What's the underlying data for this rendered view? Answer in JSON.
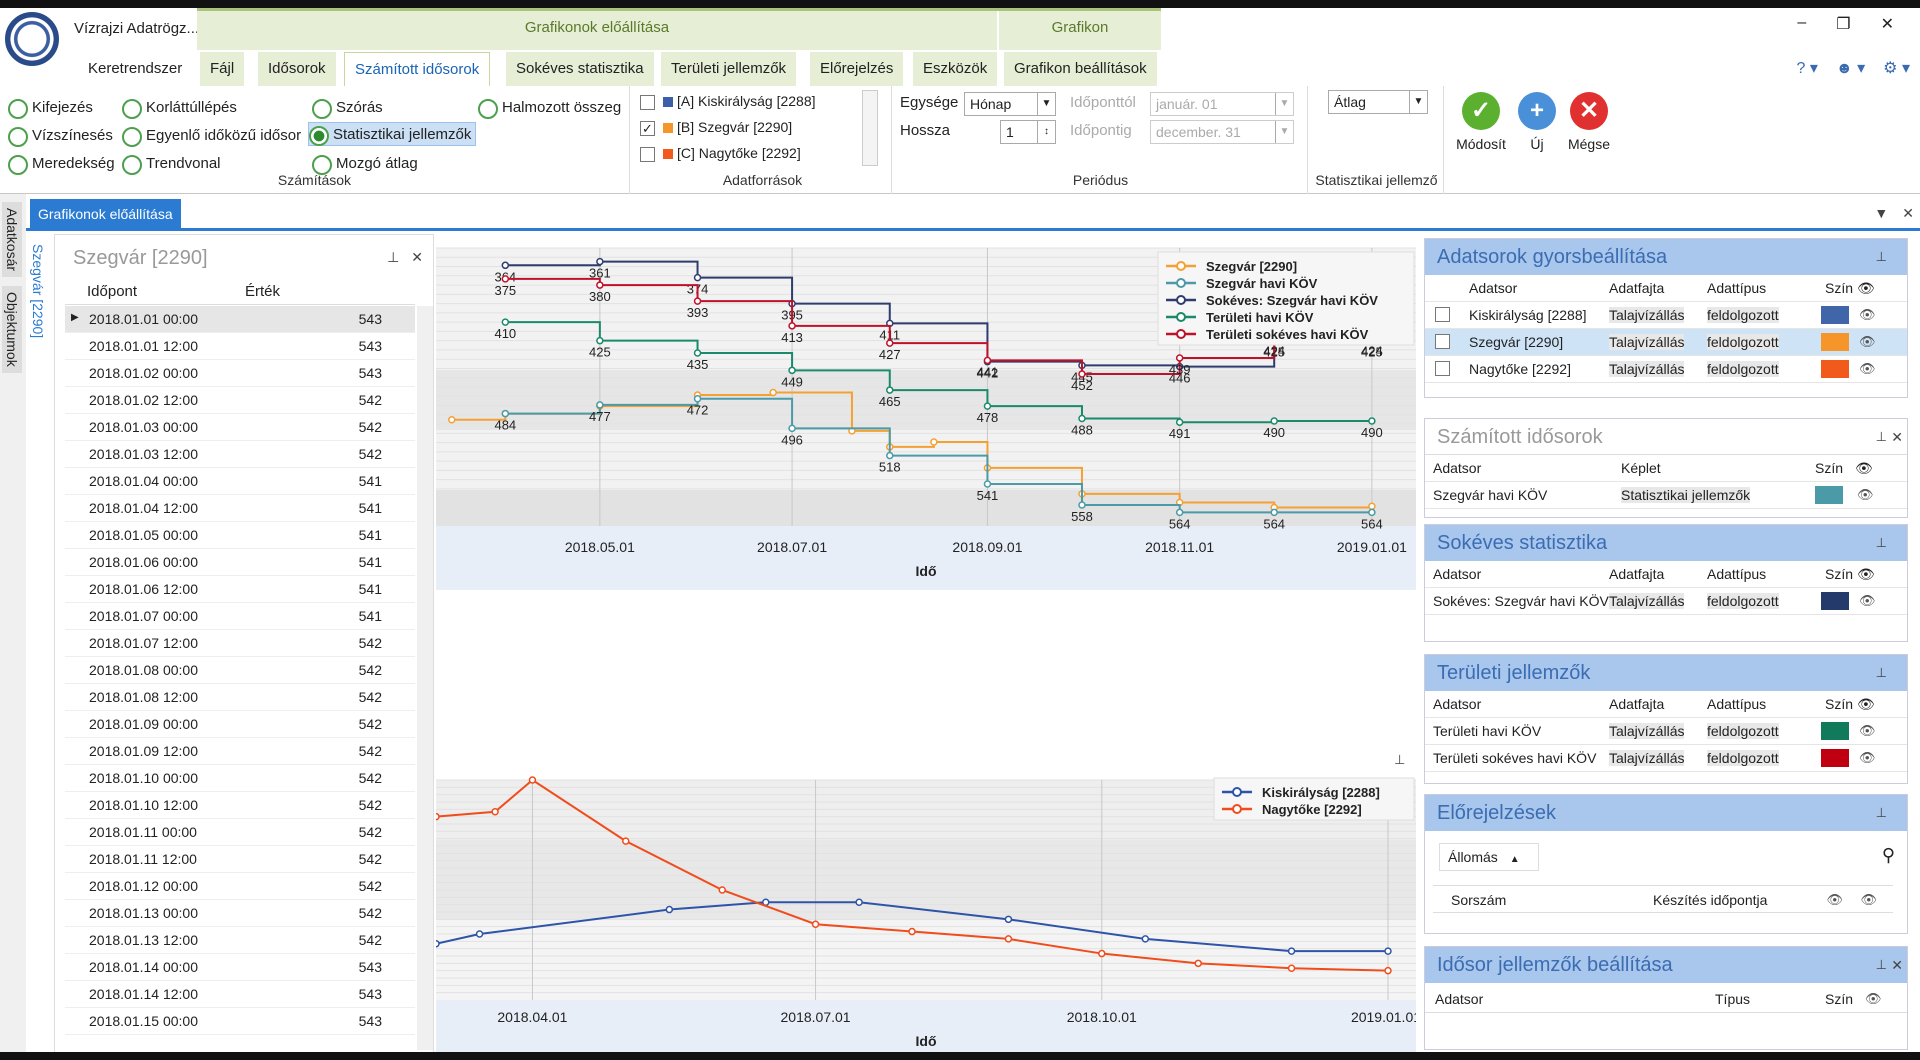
{
  "app": {
    "title": "Vízrajzi Adatrögz..."
  },
  "context_tabs": {
    "group1": "Grafikonok előállítása",
    "group2": "Grafikon"
  },
  "tabs": [
    "Keretrendszer",
    "Fájl",
    "Idősorok",
    "Számított idősorok",
    "Sokéves statisztika",
    "Területi jellemzők",
    "Előrejelzés",
    "Eszközök",
    "Grafikon beállítások"
  ],
  "calculations": {
    "label": "Számítások",
    "options": [
      "Kifejezés",
      "Korláttúllépés",
      "Szórás",
      "Halmozott összeg",
      "Vízszínesés",
      "Egyenlő időközű idősor",
      "Statisztikai jellemzők",
      "Meredekség",
      "Trendvonal",
      "Mozgó átlag"
    ],
    "selected": "Statisztikai jellemzők"
  },
  "sources": {
    "label": "Adatforrások",
    "items": [
      {
        "label": "[A] Kiskirályság [2288]",
        "checked": false,
        "color": "#3d5ea8"
      },
      {
        "label": "[B] Szegvár [2290]",
        "checked": true,
        "color": "#f5952a"
      },
      {
        "label": "[C] Nagytőke [2292]",
        "checked": false,
        "color": "#f25a1c"
      }
    ]
  },
  "period": {
    "label": "Periódus",
    "unit_label": "Egysége",
    "unit_value": "Hónap",
    "length_label": "Hossza",
    "length_value": "1",
    "from_label": "Időponttól",
    "from_value": "január. 01",
    "to_label": "Időpontig",
    "to_value": "december. 31"
  },
  "stat": {
    "label": "Statisztikai jellemző",
    "value": "Átlag"
  },
  "actions": {
    "modify": "Módosít",
    "new": "Új",
    "cancel": "Mégse"
  },
  "side_tabs": [
    "Adatkosár",
    "Objektumok"
  ],
  "doc_tab": "Grafikonok előállítása",
  "vertical_panel": "Szegvár [2290]",
  "grid": {
    "title": "Szegvár [2290]",
    "col_time": "Időpont",
    "col_value": "Érték",
    "rows": [
      [
        "2018.01.01 00:00",
        "543"
      ],
      [
        "2018.01.01 12:00",
        "543"
      ],
      [
        "2018.01.02 00:00",
        "543"
      ],
      [
        "2018.01.02 12:00",
        "542"
      ],
      [
        "2018.01.03 00:00",
        "542"
      ],
      [
        "2018.01.03 12:00",
        "542"
      ],
      [
        "2018.01.04 00:00",
        "541"
      ],
      [
        "2018.01.04 12:00",
        "541"
      ],
      [
        "2018.01.05 00:00",
        "541"
      ],
      [
        "2018.01.06 00:00",
        "541"
      ],
      [
        "2018.01.06 12:00",
        "541"
      ],
      [
        "2018.01.07 00:00",
        "541"
      ],
      [
        "2018.01.07 12:00",
        "542"
      ],
      [
        "2018.01.08 00:00",
        "542"
      ],
      [
        "2018.01.08 12:00",
        "542"
      ],
      [
        "2018.01.09 00:00",
        "542"
      ],
      [
        "2018.01.09 12:00",
        "542"
      ],
      [
        "2018.01.10 00:00",
        "542"
      ],
      [
        "2018.01.10 12:00",
        "542"
      ],
      [
        "2018.01.11 00:00",
        "542"
      ],
      [
        "2018.01.11 12:00",
        "542"
      ],
      [
        "2018.01.12 00:00",
        "542"
      ],
      [
        "2018.01.13 00:00",
        "542"
      ],
      [
        "2018.01.13 12:00",
        "542"
      ],
      [
        "2018.01.14 00:00",
        "543"
      ],
      [
        "2018.01.14 12:00",
        "543"
      ],
      [
        "2018.01.15 00:00",
        "543"
      ]
    ]
  },
  "chart_data": [
    {
      "type": "line",
      "xlabel": "Idő",
      "x_ticks": [
        "2018.05.01",
        "2018.07.01",
        "2018.09.01",
        "2018.11.01",
        "2019.01.01"
      ],
      "y_inverted": true,
      "series": [
        {
          "name": "Szegvár [2290]",
          "color": "#f5a033",
          "x": [
            "2018.03.15",
            "2018.04.01",
            "2018.05.01",
            "2018.06.01",
            "2018.06.25",
            "2018.07.20",
            "2018.08.01",
            "2018.08.15",
            "2018.09.01",
            "2018.10.01",
            "2018.11.01",
            "2018.12.01",
            "2019.01.01"
          ],
          "values": [
            489,
            484,
            478,
            469,
            467,
            498,
            511,
            507,
            528,
            549,
            556,
            560,
            559
          ]
        },
        {
          "name": "Szegvár havi KÖV",
          "color": "#4a9aa8",
          "x": [
            "2018.04.01",
            "2018.05.01",
            "2018.06.01",
            "2018.07.01",
            "2018.08.01",
            "2018.09.01",
            "2018.10.01",
            "2018.11.01",
            "2018.12.01",
            "2019.01.01"
          ],
          "values": [
            484,
            477,
            472,
            496,
            518,
            541,
            558,
            564,
            564,
            564
          ]
        },
        {
          "name": "Sokéves: Szegvár havi KÖV",
          "color": "#2e3c6e",
          "x": [
            "2018.04.01",
            "2018.05.01",
            "2018.06.01",
            "2018.07.01",
            "2018.08.01",
            "2018.09.01",
            "2018.10.01",
            "2018.11.01",
            "2018.12.01",
            "2019.01.01"
          ],
          "values": [
            364,
            361,
            374,
            395,
            411,
            442,
            445,
            446,
            424,
            424
          ]
        },
        {
          "name": "Területi havi KÖV",
          "color": "#1a8a6a",
          "x": [
            "2018.04.01",
            "2018.05.01",
            "2018.06.01",
            "2018.07.01",
            "2018.08.01",
            "2018.09.01",
            "2018.10.01",
            "2018.11.01",
            "2018.12.01",
            "2019.01.01"
          ],
          "values": [
            410,
            425,
            435,
            449,
            465,
            478,
            488,
            491,
            490,
            490
          ]
        },
        {
          "name": "Területi sokéves havi KÖV",
          "color": "#c0102a",
          "x": [
            "2018.04.01",
            "2018.05.01",
            "2018.06.01",
            "2018.07.01",
            "2018.08.01",
            "2018.09.01",
            "2018.10.01",
            "2018.11.01",
            "2018.12.01",
            "2019.01.01"
          ],
          "values": [
            375,
            380,
            393,
            413,
            427,
            441,
            452,
            439,
            425,
            425
          ]
        }
      ],
      "legend": "top-right"
    },
    {
      "type": "line",
      "xlabel": "Idő",
      "x_ticks": [
        "2018.04.01",
        "2018.07.01",
        "2018.10.01",
        "2019.01.01"
      ],
      "series": [
        {
          "name": "Kiskirályság [2288]",
          "color": "#2e54a8",
          "x": [
            "2018.03.01",
            "2018.03.15",
            "2018.05.15",
            "2018.06.15",
            "2018.07.15",
            "2018.09.01",
            "2018.10.15",
            "2018.12.01",
            "2019.01.01"
          ],
          "values": [
            0.68,
            0.72,
            0.82,
            0.85,
            0.85,
            0.78,
            0.7,
            0.65,
            0.65
          ]
        },
        {
          "name": "Nagytőke [2292]",
          "color": "#f04c1c",
          "x": [
            "2018.03.01",
            "2018.03.20",
            "2018.04.01",
            "2018.05.01",
            "2018.06.01",
            "2018.07.01",
            "2018.08.01",
            "2018.09.01",
            "2018.10.01",
            "2018.11.01",
            "2018.12.01",
            "2019.01.01"
          ],
          "values": [
            1.2,
            1.22,
            1.35,
            1.1,
            0.9,
            0.76,
            0.73,
            0.7,
            0.64,
            0.6,
            0.58,
            0.57
          ]
        }
      ],
      "legend": "top-right"
    }
  ],
  "panels": {
    "quick": {
      "title": "Adatsorok gyorsbeállítása",
      "headers": [
        "Adatsor",
        "Adatfajta",
        "Adattípus",
        "Szín"
      ],
      "rows": [
        {
          "name": "Kiskirályság [2288]",
          "kind": "Talajvízállás",
          "type": "feldolgozott",
          "color": "#4065a8"
        },
        {
          "name": "Szegvár [2290]",
          "kind": "Talajvízállás",
          "type": "feldolgozott",
          "color": "#f5952a"
        },
        {
          "name": "Nagytőke [2292]",
          "kind": "Talajvízállás",
          "type": "feldolgozott",
          "color": "#f25a1c"
        }
      ]
    },
    "computed": {
      "title": "Számított idősorok",
      "headers": [
        "Adatsor",
        "Képlet",
        "Szín"
      ],
      "rows": [
        {
          "name": "Szegvár havi KÖV",
          "formula": "Statisztikai jellemzők",
          "color": "#4a9aa8"
        }
      ]
    },
    "longterm": {
      "title": "Sokéves statisztika",
      "headers": [
        "Adatsor",
        "Adatfajta",
        "Adattípus",
        "Szín"
      ],
      "rows": [
        {
          "name": "Sokéves: Szegvár havi KÖV",
          "kind": "Talajvízállás",
          "type": "feldolgozott",
          "color": "#243a6a"
        }
      ]
    },
    "regional": {
      "title": "Területi jellemzők",
      "headers": [
        "Adatsor",
        "Adatfajta",
        "Adattípus",
        "Szín"
      ],
      "rows": [
        {
          "name": "Területi havi KÖV",
          "kind": "Talajvízállás",
          "type": "feldolgozott",
          "color": "#117a5a"
        },
        {
          "name": "Területi sokéves havi KÖV",
          "kind": "Talajvízállás",
          "type": "feldolgozott",
          "color": "#c00010"
        }
      ]
    },
    "forecast": {
      "title": "Előrejelzések",
      "station": "Állomás",
      "headers": [
        "Sorszám",
        "Készítés időpontja"
      ]
    },
    "series_settings": {
      "title": "Idősor jellemzők beállítása",
      "headers": [
        "Adatsor",
        "Típus",
        "Szín"
      ]
    }
  }
}
